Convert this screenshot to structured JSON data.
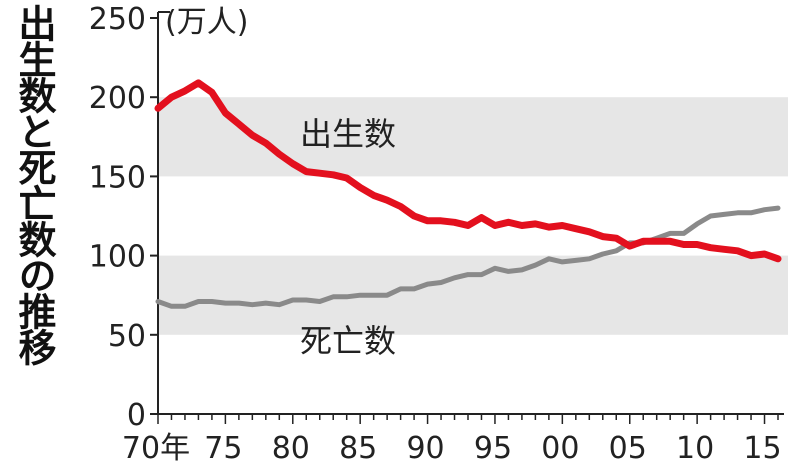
{
  "chart_data": {
    "type": "line",
    "title": "出生数と死亡数の推移",
    "unit": "(万人)",
    "x_range": [
      1970,
      2016
    ],
    "ylim": [
      0,
      250
    ],
    "y_ticks": [
      0,
      50,
      100,
      150,
      200,
      250
    ],
    "x_ticks": [
      {
        "year": 1970,
        "label": "70年"
      },
      {
        "year": 1975,
        "label": "75"
      },
      {
        "year": 1980,
        "label": "80"
      },
      {
        "year": 1985,
        "label": "85"
      },
      {
        "year": 1990,
        "label": "90"
      },
      {
        "year": 1995,
        "label": "95"
      },
      {
        "year": 2000,
        "label": "00"
      },
      {
        "year": 2005,
        "label": "05"
      },
      {
        "year": 2010,
        "label": "10"
      },
      {
        "year": 2015,
        "label": "15"
      }
    ],
    "bands": [
      [
        50,
        100
      ],
      [
        150,
        200
      ]
    ],
    "band_color": "#e6e6e6",
    "series": [
      {
        "name": "出生数",
        "color": "#e3101e",
        "x": [
          1970,
          1971,
          1972,
          1973,
          1974,
          1975,
          1976,
          1977,
          1978,
          1979,
          1980,
          1981,
          1982,
          1983,
          1984,
          1985,
          1986,
          1987,
          1988,
          1989,
          1990,
          1991,
          1992,
          1993,
          1994,
          1995,
          1996,
          1997,
          1998,
          1999,
          2000,
          2001,
          2002,
          2003,
          2004,
          2005,
          2006,
          2007,
          2008,
          2009,
          2010,
          2011,
          2012,
          2013,
          2014,
          2015,
          2016
        ],
        "values": [
          193,
          200,
          204,
          209,
          203,
          190,
          183,
          176,
          171,
          164,
          158,
          153,
          152,
          151,
          149,
          143,
          138,
          135,
          131,
          125,
          122,
          122,
          121,
          119,
          124,
          119,
          121,
          119,
          120,
          118,
          119,
          117,
          115,
          112,
          111,
          106,
          109,
          109,
          109,
          107,
          107,
          105,
          104,
          103,
          100,
          101,
          98
        ]
      },
      {
        "name": "死亡数",
        "color": "#8a8a8a",
        "x": [
          1970,
          1971,
          1972,
          1973,
          1974,
          1975,
          1976,
          1977,
          1978,
          1979,
          1980,
          1981,
          1982,
          1983,
          1984,
          1985,
          1986,
          1987,
          1988,
          1989,
          1990,
          1991,
          1992,
          1993,
          1994,
          1995,
          1996,
          1997,
          1998,
          1999,
          2000,
          2001,
          2002,
          2003,
          2004,
          2005,
          2006,
          2007,
          2008,
          2009,
          2010,
          2011,
          2012,
          2013,
          2014,
          2015,
          2016
        ],
        "values": [
          71,
          68,
          68,
          71,
          71,
          70,
          70,
          69,
          70,
          69,
          72,
          72,
          71,
          74,
          74,
          75,
          75,
          75,
          79,
          79,
          82,
          83,
          86,
          88,
          88,
          92,
          90,
          91,
          94,
          98,
          96,
          97,
          98,
          101,
          103,
          108,
          108,
          111,
          114,
          114,
          120,
          125,
          126,
          127,
          127,
          129,
          130
        ]
      }
    ]
  }
}
